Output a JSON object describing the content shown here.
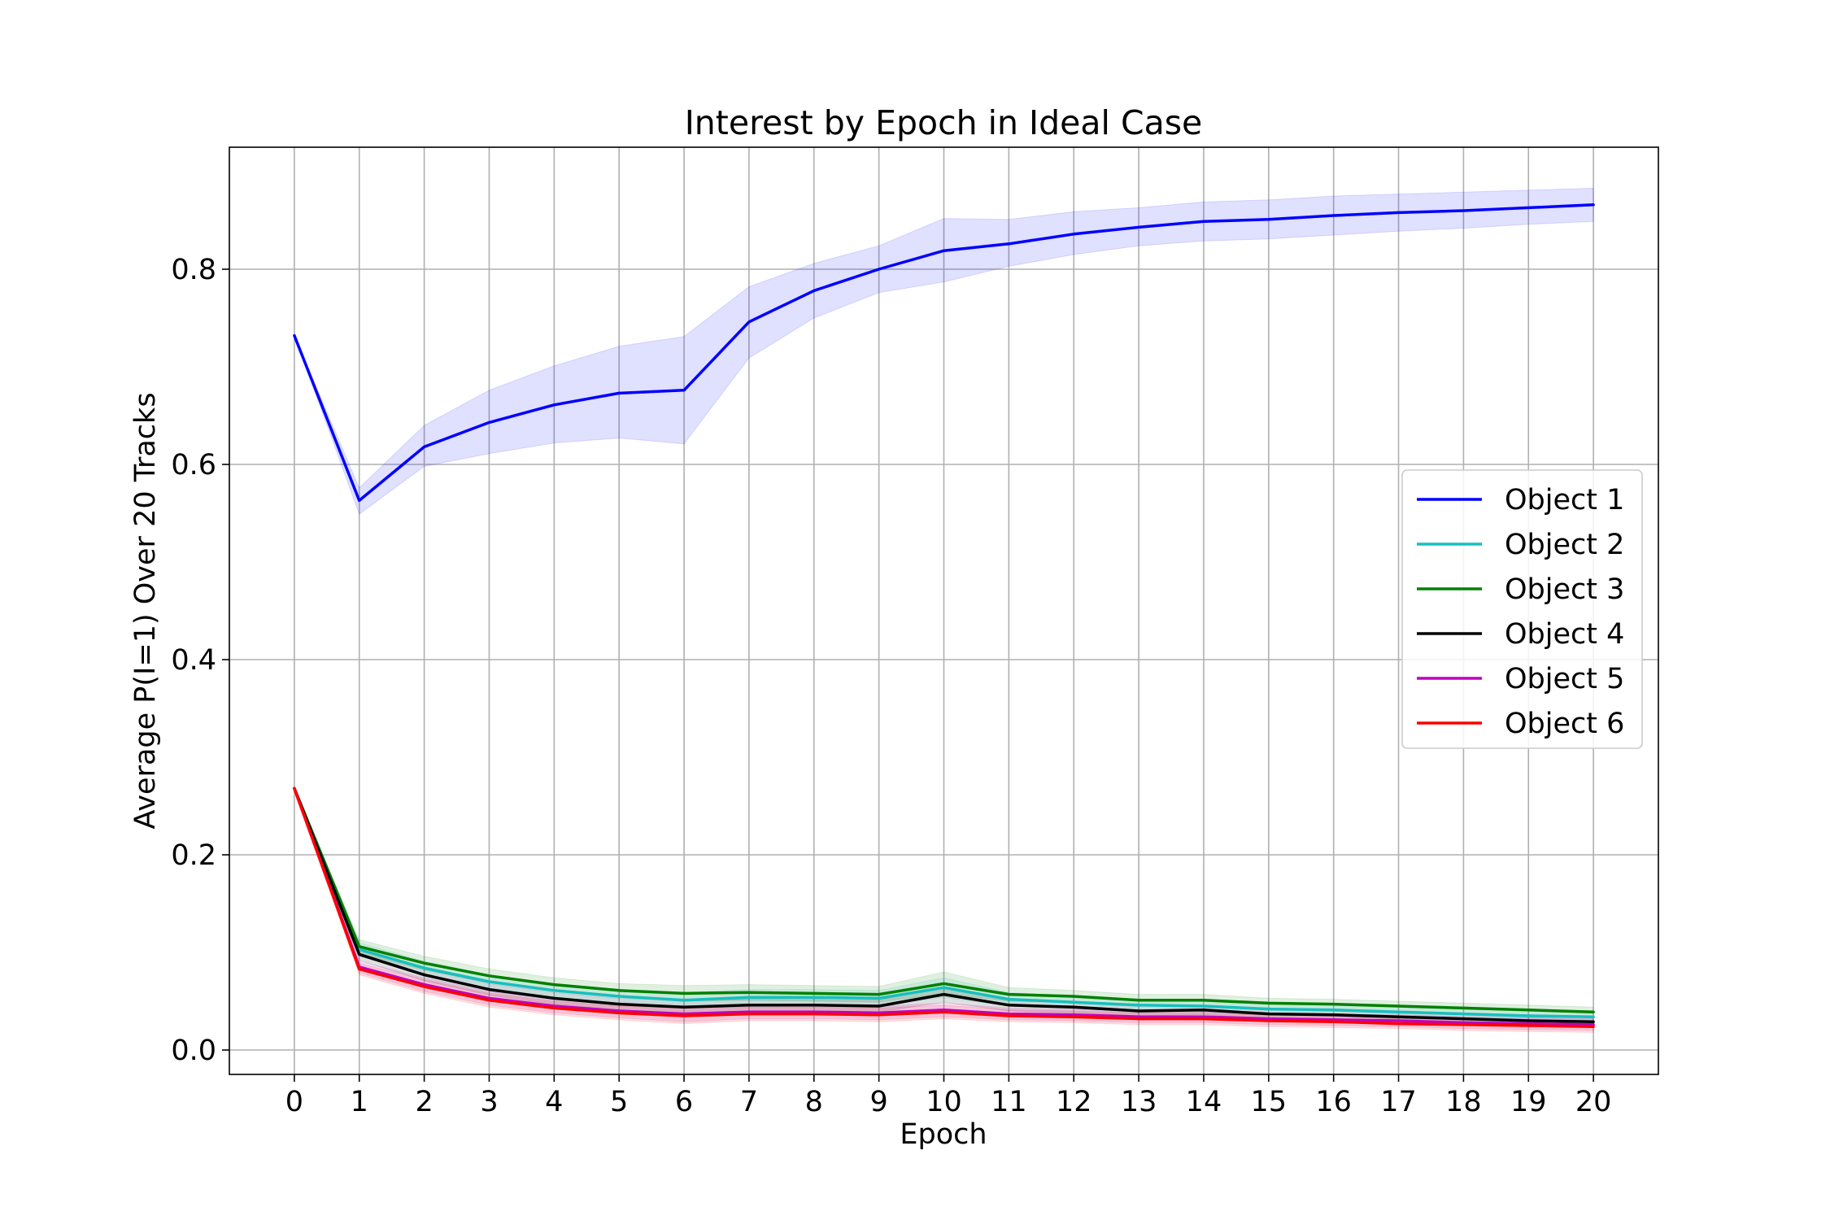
{
  "chart_data": {
    "type": "line",
    "title": "Interest by Epoch in Ideal Case",
    "xlabel": "Epoch",
    "ylabel": "Average P(I=1) Over 20 Tracks",
    "x": [
      0,
      1,
      2,
      3,
      4,
      5,
      6,
      7,
      8,
      9,
      10,
      11,
      12,
      13,
      14,
      15,
      16,
      17,
      18,
      19,
      20
    ],
    "xlim": [
      -1,
      21
    ],
    "ylim": [
      -0.025,
      0.925
    ],
    "yticks": [
      0.0,
      0.2,
      0.4,
      0.6,
      0.8
    ],
    "ytick_labels": [
      "0.0",
      "0.2",
      "0.4",
      "0.6",
      "0.8"
    ],
    "grid": true,
    "legend_position": "center-right",
    "series": [
      {
        "name": "Object 1",
        "color": "#0000ff",
        "values": [
          0.732,
          0.563,
          0.618,
          0.643,
          0.661,
          0.673,
          0.676,
          0.746,
          0.778,
          0.8,
          0.819,
          0.826,
          0.836,
          0.843,
          0.849,
          0.851,
          0.855,
          0.858,
          0.86,
          0.863,
          0.866
        ],
        "lower": [
          0.732,
          0.549,
          0.598,
          0.611,
          0.622,
          0.627,
          0.621,
          0.709,
          0.75,
          0.776,
          0.787,
          0.803,
          0.815,
          0.824,
          0.829,
          0.831,
          0.835,
          0.839,
          0.842,
          0.846,
          0.849
        ],
        "upper": [
          0.732,
          0.576,
          0.64,
          0.676,
          0.701,
          0.721,
          0.731,
          0.782,
          0.806,
          0.824,
          0.852,
          0.851,
          0.859,
          0.863,
          0.869,
          0.871,
          0.875,
          0.877,
          0.879,
          0.881,
          0.883
        ]
      },
      {
        "name": "Object 2",
        "color": "#17bfbf",
        "values": [
          0.268,
          0.103,
          0.084,
          0.07,
          0.061,
          0.055,
          0.051,
          0.054,
          0.054,
          0.053,
          0.064,
          0.052,
          0.049,
          0.046,
          0.045,
          0.042,
          0.041,
          0.039,
          0.037,
          0.035,
          0.034
        ],
        "lower": [
          0.268,
          0.096,
          0.077,
          0.063,
          0.054,
          0.048,
          0.043,
          0.046,
          0.046,
          0.045,
          0.054,
          0.045,
          0.043,
          0.04,
          0.039,
          0.037,
          0.036,
          0.034,
          0.032,
          0.03,
          0.029
        ],
        "upper": [
          0.268,
          0.11,
          0.091,
          0.077,
          0.068,
          0.062,
          0.059,
          0.062,
          0.062,
          0.061,
          0.074,
          0.059,
          0.055,
          0.052,
          0.051,
          0.047,
          0.046,
          0.044,
          0.042,
          0.04,
          0.039
        ]
      },
      {
        "name": "Object 3",
        "color": "#008000",
        "values": [
          0.268,
          0.106,
          0.089,
          0.076,
          0.067,
          0.061,
          0.058,
          0.059,
          0.058,
          0.057,
          0.068,
          0.057,
          0.055,
          0.051,
          0.051,
          0.048,
          0.047,
          0.045,
          0.043,
          0.041,
          0.039
        ],
        "lower": [
          0.268,
          0.099,
          0.082,
          0.069,
          0.06,
          0.054,
          0.05,
          0.051,
          0.05,
          0.049,
          0.058,
          0.05,
          0.049,
          0.045,
          0.045,
          0.043,
          0.042,
          0.04,
          0.038,
          0.036,
          0.034
        ],
        "upper": [
          0.268,
          0.113,
          0.096,
          0.083,
          0.074,
          0.068,
          0.066,
          0.067,
          0.066,
          0.065,
          0.08,
          0.064,
          0.061,
          0.057,
          0.057,
          0.053,
          0.052,
          0.05,
          0.048,
          0.046,
          0.044
        ]
      },
      {
        "name": "Object 4",
        "color": "#000000",
        "values": [
          0.268,
          0.098,
          0.077,
          0.062,
          0.053,
          0.047,
          0.044,
          0.046,
          0.046,
          0.045,
          0.057,
          0.046,
          0.044,
          0.04,
          0.041,
          0.037,
          0.036,
          0.034,
          0.032,
          0.03,
          0.029
        ],
        "lower": [
          0.268,
          0.092,
          0.071,
          0.056,
          0.047,
          0.041,
          0.037,
          0.04,
          0.04,
          0.039,
          0.049,
          0.04,
          0.038,
          0.035,
          0.036,
          0.032,
          0.031,
          0.029,
          0.027,
          0.025,
          0.024
        ],
        "upper": [
          0.268,
          0.104,
          0.083,
          0.068,
          0.059,
          0.053,
          0.051,
          0.052,
          0.052,
          0.051,
          0.065,
          0.052,
          0.05,
          0.045,
          0.046,
          0.042,
          0.041,
          0.039,
          0.037,
          0.035,
          0.034
        ]
      },
      {
        "name": "Object 5",
        "color": "#bf00bf",
        "values": [
          0.268,
          0.085,
          0.067,
          0.053,
          0.045,
          0.04,
          0.037,
          0.039,
          0.039,
          0.038,
          0.041,
          0.037,
          0.036,
          0.034,
          0.034,
          0.032,
          0.031,
          0.03,
          0.028,
          0.027,
          0.026
        ],
        "lower": [
          0.268,
          0.079,
          0.06,
          0.046,
          0.038,
          0.033,
          0.029,
          0.032,
          0.032,
          0.031,
          0.034,
          0.031,
          0.03,
          0.028,
          0.028,
          0.026,
          0.025,
          0.024,
          0.022,
          0.021,
          0.02
        ],
        "upper": [
          0.268,
          0.091,
          0.074,
          0.06,
          0.052,
          0.047,
          0.045,
          0.046,
          0.046,
          0.045,
          0.048,
          0.043,
          0.042,
          0.04,
          0.04,
          0.038,
          0.037,
          0.036,
          0.034,
          0.033,
          0.032
        ]
      },
      {
        "name": "Object 6",
        "color": "#ff0000",
        "values": [
          0.268,
          0.083,
          0.065,
          0.051,
          0.043,
          0.038,
          0.035,
          0.037,
          0.037,
          0.036,
          0.039,
          0.035,
          0.034,
          0.032,
          0.032,
          0.03,
          0.029,
          0.027,
          0.026,
          0.025,
          0.024
        ],
        "lower": [
          0.268,
          0.077,
          0.058,
          0.044,
          0.036,
          0.031,
          0.027,
          0.03,
          0.03,
          0.029,
          0.032,
          0.029,
          0.028,
          0.026,
          0.026,
          0.024,
          0.023,
          0.022,
          0.02,
          0.019,
          0.018
        ],
        "upper": [
          0.268,
          0.089,
          0.072,
          0.058,
          0.05,
          0.045,
          0.043,
          0.044,
          0.044,
          0.043,
          0.046,
          0.041,
          0.04,
          0.038,
          0.038,
          0.036,
          0.035,
          0.033,
          0.032,
          0.031,
          0.03
        ]
      }
    ]
  }
}
